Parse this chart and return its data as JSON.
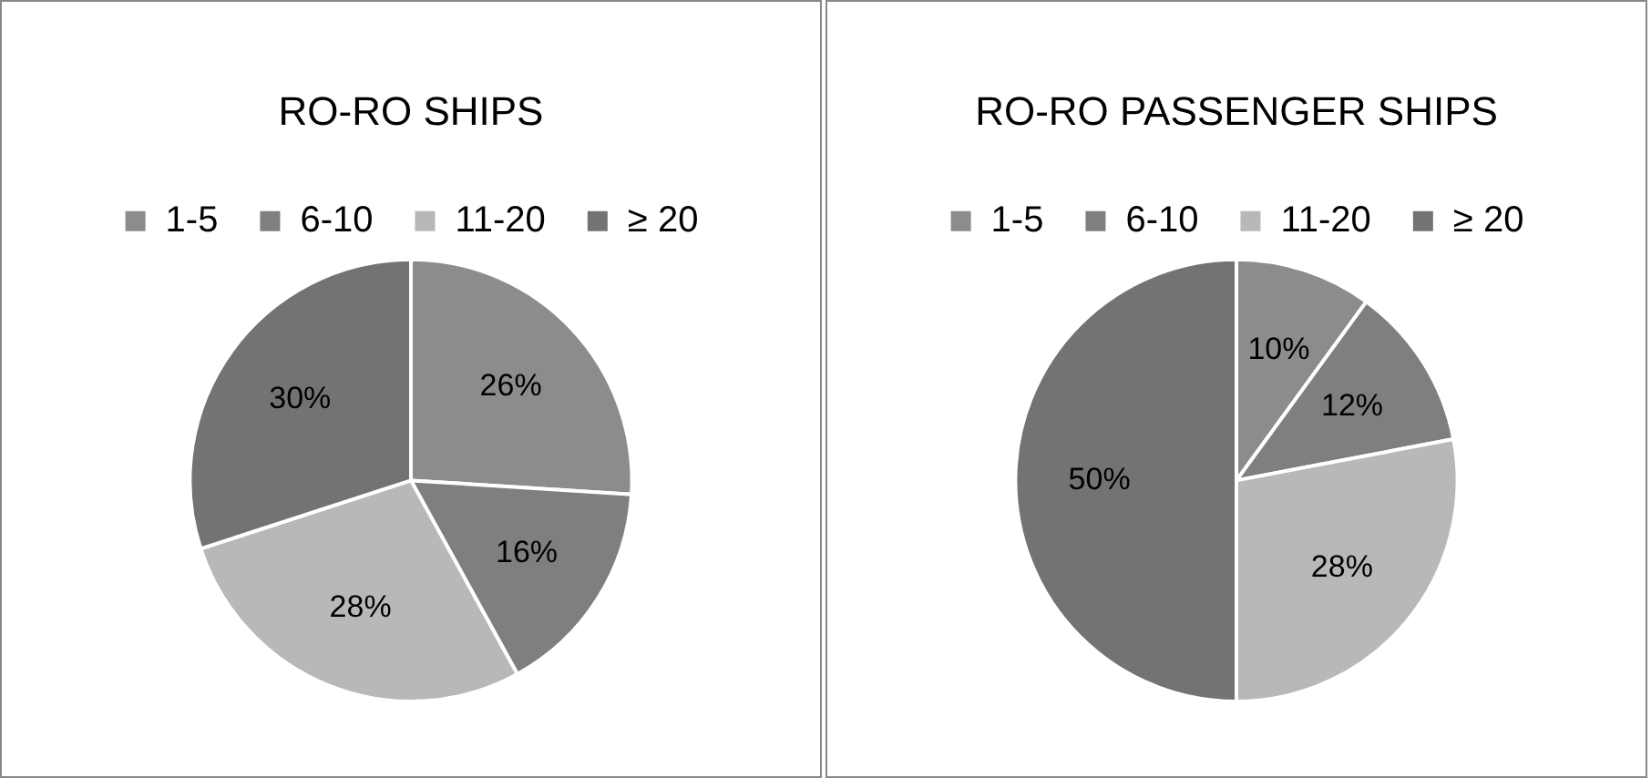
{
  "chart_data": [
    {
      "type": "pie",
      "title": "RO-RO SHIPS",
      "categories": [
        "1-5",
        "6-10",
        "11-20",
        "≥ 20"
      ],
      "values": [
        26,
        16,
        28,
        30
      ],
      "colors": [
        "#8c8c8c",
        "#7f7f7f",
        "#b8b8b8",
        "#737373"
      ],
      "legend": "top",
      "value_labels": [
        "26%",
        "16%",
        "28%",
        "30%"
      ]
    },
    {
      "type": "pie",
      "title": "RO-RO PASSENGER SHIPS",
      "categories": [
        "1-5",
        "6-10",
        "11-20",
        "≥ 20"
      ],
      "values": [
        10,
        12,
        28,
        50
      ],
      "colors": [
        "#8c8c8c",
        "#7f7f7f",
        "#b8b8b8",
        "#737373"
      ],
      "legend": "top",
      "value_labels": [
        "10%",
        "12%",
        "28%",
        "50%"
      ]
    }
  ]
}
